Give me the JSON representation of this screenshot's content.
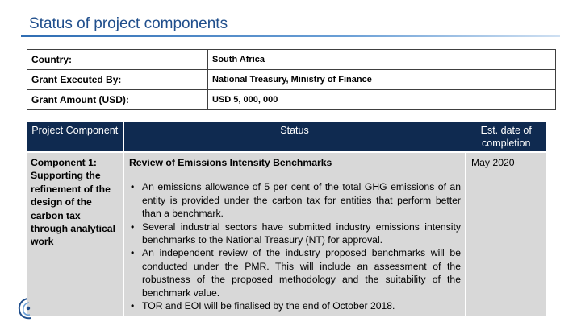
{
  "slide": {
    "title": "Status of project components"
  },
  "info_table": [
    {
      "label": "Country:",
      "value": "South Africa"
    },
    {
      "label": "Grant Executed By:",
      "value": "National Treasury, Ministry of Finance"
    },
    {
      "label": "Grant Amount (USD):",
      "value": "USD 5, 000, 000"
    }
  ],
  "status_table": {
    "headers": {
      "component": "Project Component",
      "status": "Status",
      "date": "Est. date of completion"
    },
    "rows": [
      {
        "component": "Component 1: Supporting the refinement of the design of the carbon tax through analytical work",
        "status_heading": "Review of Emissions Intensity Benchmarks",
        "bullets": [
          "An emissions allowance of 5 per cent of the total GHG emissions of an entity is provided under the carbon tax for entities that perform better than a benchmark.",
          "Several industrial sectors have submitted industry emissions intensity benchmarks to the National Treasury (NT) for approval.",
          "An independent review of the industry proposed benchmarks will be conducted under the PMR.  This will include an assessment of the robustness of the proposed methodology and the suitability of the benchmark value.",
          "TOR and EOI will be finalised by the end of October 2018."
        ],
        "date": "May 2020"
      }
    ]
  },
  "colors": {
    "title": "#1f4e8c",
    "header_bg": "#0f2a50",
    "body_bg": "#d8d8d8"
  },
  "icons": {
    "logo": "emblem-logo-icon"
  }
}
